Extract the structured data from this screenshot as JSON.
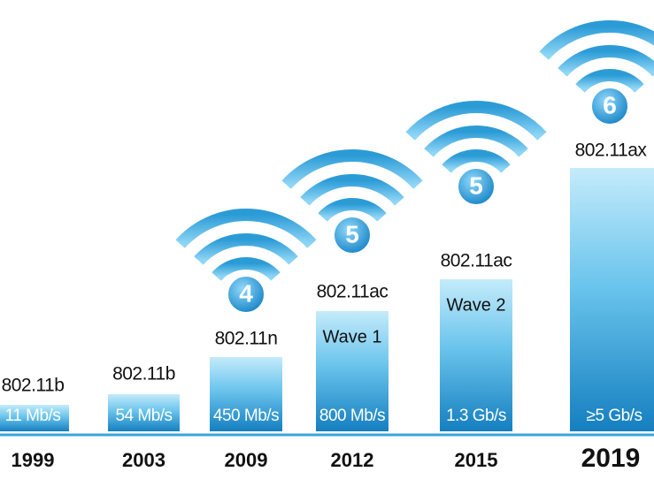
{
  "items": [
    {
      "year": "1999",
      "standard": "802.11b",
      "speed": "11 Mb/s"
    },
    {
      "year": "2003",
      "standard": "802.11b",
      "speed": "54 Mb/s"
    },
    {
      "year": "2009",
      "standard": "802.11n",
      "speed": "450 Mb/s",
      "badge": "4"
    },
    {
      "year": "2012",
      "standard": "802.11ac",
      "wave": "Wave 1",
      "speed": "800 Mb/s",
      "badge": "5"
    },
    {
      "year": "2015",
      "standard": "802.11ac",
      "wave": "Wave 2",
      "speed": "1.3 Gb/s",
      "badge": "5"
    },
    {
      "year": "2019",
      "standard": "802.11ax",
      "speed": "≥5 Gb/s",
      "badge": "6"
    }
  ]
}
